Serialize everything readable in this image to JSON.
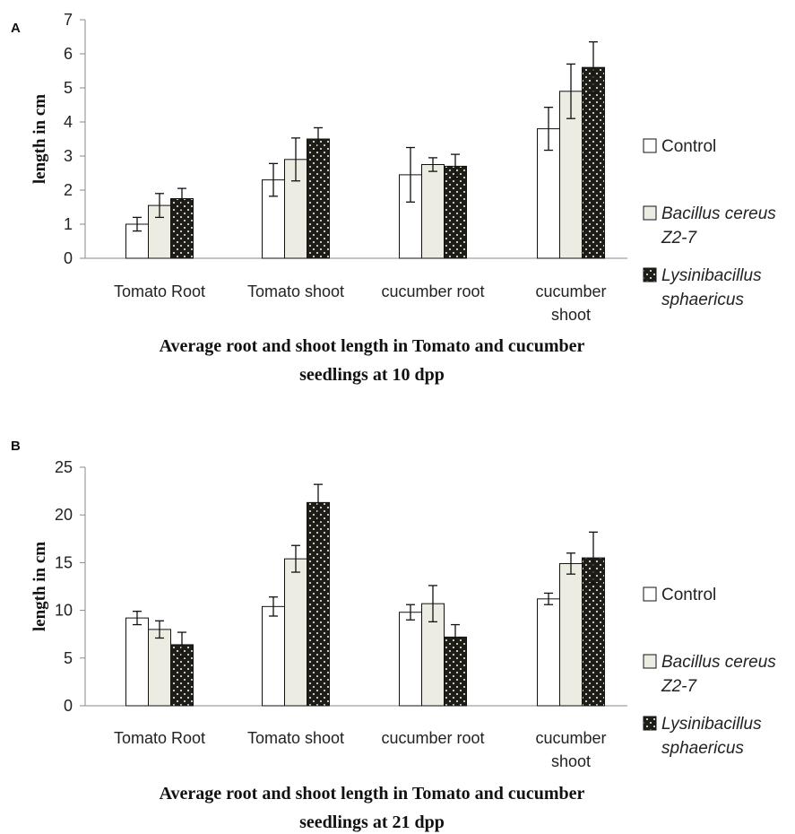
{
  "chart_data": [
    {
      "type": "bar",
      "panel_label": "A",
      "categories": [
        "Tomato Root",
        "Tomato shoot",
        "cucumber root",
        "cucumber shoot"
      ],
      "category_lines": [
        [
          "Tomato Root"
        ],
        [
          "Tomato shoot"
        ],
        [
          "cucumber root"
        ],
        [
          "cucumber",
          "shoot"
        ]
      ],
      "ylabel": "length in cm",
      "ylim": [
        0,
        7
      ],
      "yticks": [
        0,
        1,
        2,
        3,
        4,
        5,
        6,
        7
      ],
      "title_lines": [
        "Average  root and shoot length in Tomato and cucumber",
        "seedlings at 10 dpp"
      ],
      "legend": [
        {
          "lines": [
            "Control"
          ],
          "italic": false
        },
        {
          "lines": [
            "Bacillus cereus",
            "Z2-7"
          ],
          "italic": true
        },
        {
          "lines": [
            "Lysinibacillus",
            "sphaericus"
          ],
          "italic": true
        }
      ],
      "series": [
        {
          "name": "Control",
          "values": [
            1.0,
            2.3,
            2.45,
            3.8
          ],
          "errors": [
            0.2,
            0.48,
            0.8,
            0.63
          ],
          "color": "#ffffff"
        },
        {
          "name": "Bacillus cereus Z2-7",
          "values": [
            1.55,
            2.9,
            2.75,
            4.9
          ],
          "errors": [
            0.35,
            0.63,
            0.2,
            0.8
          ],
          "color": "#edece2"
        },
        {
          "name": "Lysinibacillus sphaericus",
          "values": [
            1.75,
            3.5,
            2.7,
            5.6
          ],
          "errors": [
            0.3,
            0.33,
            0.35,
            0.75
          ],
          "color": "#1e1e17"
        }
      ],
      "grid": false,
      "legend_position": "right"
    },
    {
      "type": "bar",
      "panel_label": "B",
      "categories": [
        "Tomato Root",
        "Tomato shoot",
        "cucumber root",
        "cucumber shoot"
      ],
      "category_lines": [
        [
          "Tomato Root"
        ],
        [
          "Tomato shoot"
        ],
        [
          "cucumber root"
        ],
        [
          "cucumber",
          "shoot"
        ]
      ],
      "ylabel": "length in cm",
      "ylim": [
        0,
        25
      ],
      "yticks": [
        0,
        5,
        10,
        15,
        20,
        25
      ],
      "title_lines": [
        "Average  root and shoot length in Tomato and cucumber",
        "seedlings at 21 dpp"
      ],
      "legend": [
        {
          "lines": [
            "Control"
          ],
          "italic": false
        },
        {
          "lines": [
            "Bacillus cereus",
            "Z2-7"
          ],
          "italic": true
        },
        {
          "lines": [
            "Lysinibacillus",
            "sphaericus"
          ],
          "italic": true
        }
      ],
      "series": [
        {
          "name": "Control",
          "values": [
            9.2,
            10.4,
            9.8,
            11.2
          ],
          "errors": [
            0.7,
            1.0,
            0.8,
            0.6
          ],
          "color": "#ffffff"
        },
        {
          "name": "Bacillus cereus Z2-7",
          "values": [
            8.0,
            15.4,
            10.7,
            14.9
          ],
          "errors": [
            0.9,
            1.4,
            1.9,
            1.1
          ],
          "color": "#edece2"
        },
        {
          "name": "Lysinibacillus sphaericus",
          "values": [
            6.4,
            21.3,
            7.2,
            15.5
          ],
          "errors": [
            1.3,
            1.9,
            1.3,
            2.7
          ],
          "color": "#1e1e17"
        }
      ],
      "grid": false,
      "legend_position": "right"
    }
  ]
}
